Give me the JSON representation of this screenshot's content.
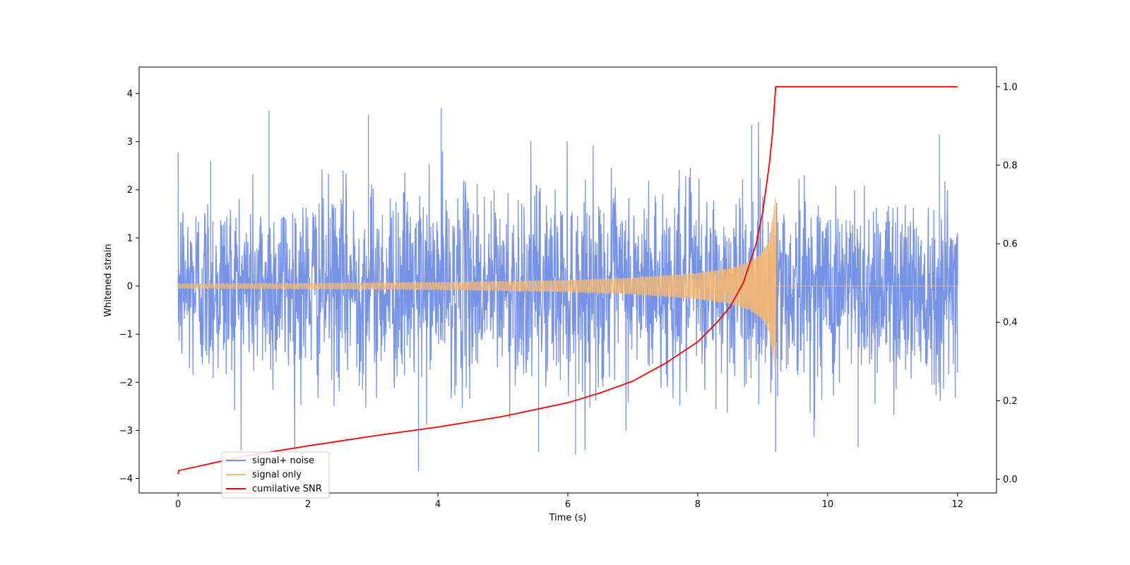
{
  "chart_data": {
    "type": "line",
    "title": "",
    "xlabel": "Time (s)",
    "ylabel": "Whitened strain",
    "ylabel_right": "",
    "xlim": [
      -0.6,
      12.6
    ],
    "ylim": [
      -4.3,
      4.55
    ],
    "ylim_right": [
      -0.035,
      1.05
    ],
    "x_ticks": [
      0,
      2,
      4,
      6,
      8,
      10,
      12
    ],
    "x_tick_labels": [
      "0",
      "2",
      "4",
      "6",
      "8",
      "10",
      "12"
    ],
    "y_ticks": [
      -4,
      -3,
      -2,
      -1,
      0,
      1,
      2,
      3,
      4
    ],
    "y_tick_labels": [
      "−4",
      "−3",
      "−2",
      "−1",
      "0",
      "1",
      "2",
      "3",
      "4"
    ],
    "y_right_ticks": [
      0.0,
      0.2,
      0.4,
      0.6,
      0.8,
      1.0
    ],
    "y_right_tick_labels": [
      "0.0",
      "0.2",
      "0.4",
      "0.6",
      "0.8",
      "1.0"
    ],
    "grid": false,
    "legend_position": "lower-left",
    "merger_time": 9.2,
    "series": [
      {
        "name": "signal+ noise",
        "color": "#6f8de6",
        "axis": "left",
        "description_points": [
          [
            0,
            0.2
          ],
          [
            0.5,
            2.6
          ],
          [
            1.4,
            3.65
          ],
          [
            2.93,
            3.55
          ],
          [
            3.7,
            -3.85
          ],
          [
            4.05,
            3.7
          ],
          [
            5.55,
            -3.45
          ],
          [
            6.12,
            -3.5
          ],
          [
            8.83,
            3.35
          ],
          [
            9.2,
            -3.45
          ],
          [
            10.47,
            -3.35
          ],
          [
            11.72,
            3.15
          ],
          [
            12,
            1.1
          ]
        ]
      },
      {
        "name": "signal only",
        "color": "#f5b972",
        "axis": "left",
        "envelope": [
          [
            0,
            0.05
          ],
          [
            2,
            0.06
          ],
          [
            4,
            0.08
          ],
          [
            6,
            0.12
          ],
          [
            7,
            0.17
          ],
          [
            8,
            0.27
          ],
          [
            8.5,
            0.37
          ],
          [
            8.8,
            0.5
          ],
          [
            9.0,
            0.7
          ],
          [
            9.1,
            0.95
          ],
          [
            9.18,
            1.7
          ],
          [
            9.2,
            1.95
          ],
          [
            9.21,
            0.0
          ],
          [
            12,
            0.0
          ]
        ]
      },
      {
        "name": "cumilative SNR",
        "color": "#ff0000",
        "axis": "right",
        "x": [
          0,
          0.01,
          0.5,
          1,
          2,
          3,
          4,
          5,
          6,
          6.5,
          7,
          7.5,
          8,
          8.3,
          8.5,
          8.7,
          8.9,
          9.0,
          9.1,
          9.15,
          9.2,
          10,
          11,
          12
        ],
        "y": [
          0.013,
          0.022,
          0.04,
          0.058,
          0.085,
          0.11,
          0.133,
          0.16,
          0.195,
          0.22,
          0.25,
          0.295,
          0.35,
          0.4,
          0.44,
          0.5,
          0.6,
          0.68,
          0.8,
          0.88,
          1.0,
          1.0,
          1.0,
          1.0
        ]
      }
    ]
  }
}
